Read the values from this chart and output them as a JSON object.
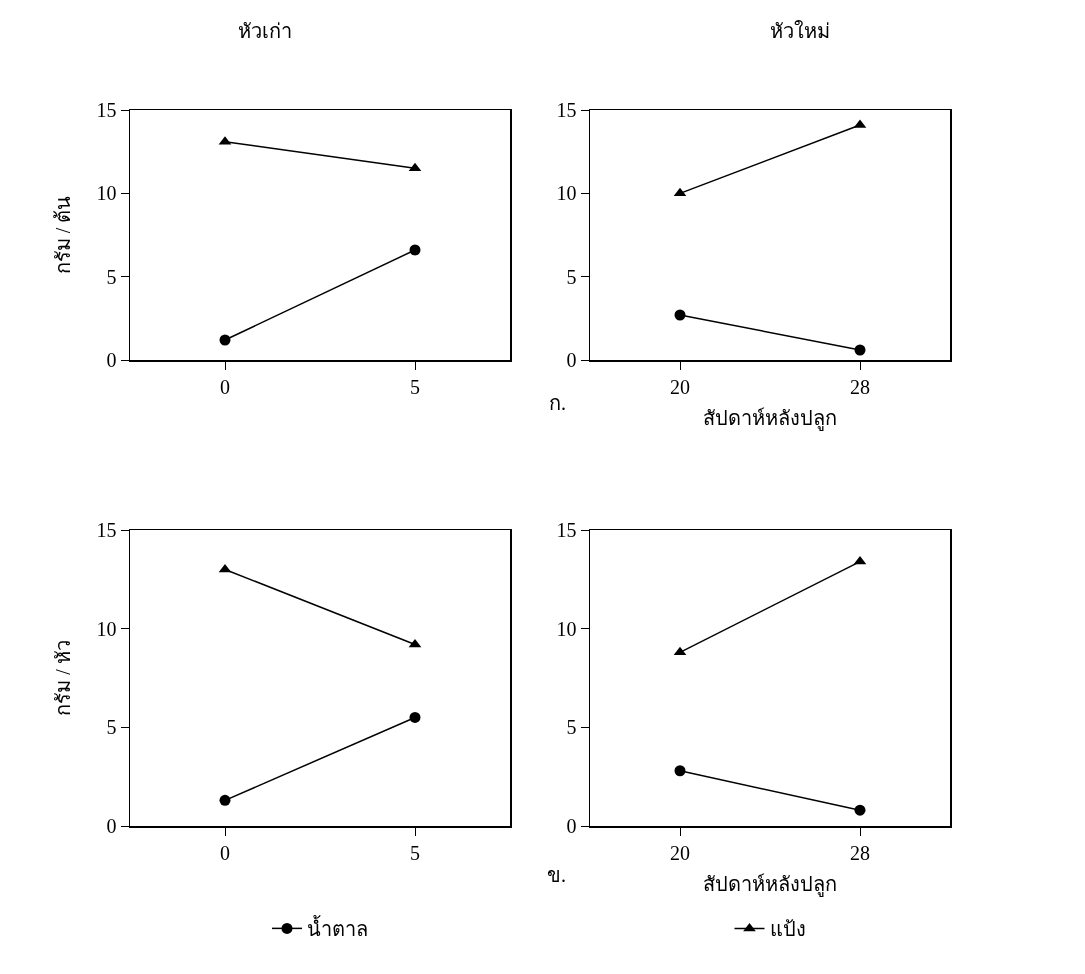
{
  "chart_data": [
    {
      "type": "line",
      "title": "หัวเก่า",
      "ylabel": "กรัม / ต้น",
      "categories": [
        "0",
        "5"
      ],
      "ylim": [
        0,
        15
      ],
      "yticks": [
        0,
        5,
        10,
        15
      ],
      "grid": false,
      "legend": false,
      "series": [
        {
          "color": "#000000",
          "marker": "circle",
          "values": [
            1.2,
            6.6
          ]
        },
        {
          "color": "#000000",
          "marker": "triangle",
          "values": [
            13.1,
            11.5
          ]
        }
      ]
    },
    {
      "type": "line",
      "title": "หัวใหม่",
      "xlabel": "สัปดาห์หลังปลูก",
      "annotations": [
        "ก."
      ],
      "categories": [
        "20",
        "28"
      ],
      "ylim": [
        0,
        15
      ],
      "yticks": [
        0,
        5,
        10,
        15
      ],
      "grid": false,
      "legend": false,
      "series": [
        {
          "color": "#000000",
          "marker": "circle",
          "values": [
            2.7,
            0.6
          ]
        },
        {
          "color": "#000000",
          "marker": "triangle",
          "values": [
            10.0,
            14.1
          ]
        }
      ]
    },
    {
      "type": "line",
      "ylabel": "กรัม / หัว",
      "categories": [
        "0",
        "5"
      ],
      "ylim": [
        0,
        15
      ],
      "yticks": [
        0,
        5,
        10,
        15
      ],
      "grid": false,
      "legend": "bottom",
      "series": [
        {
          "name": "น้ำตาล",
          "color": "#000000",
          "marker": "circle",
          "values": [
            1.3,
            5.5
          ]
        },
        {
          "color": "#000000",
          "marker": "triangle",
          "values": [
            13.0,
            9.2
          ]
        }
      ]
    },
    {
      "type": "line",
      "xlabel": "สัปดาห์หลังปลูก",
      "annotations": [
        "ข."
      ],
      "categories": [
        "20",
        "28"
      ],
      "ylim": [
        0,
        15
      ],
      "yticks": [
        0,
        5,
        10,
        15
      ],
      "grid": false,
      "legend": "bottom",
      "series": [
        {
          "color": "#000000",
          "marker": "circle",
          "values": [
            2.8,
            0.8
          ]
        },
        {
          "name": "แป้ง",
          "color": "#000000",
          "marker": "triangle",
          "values": [
            8.8,
            13.4
          ]
        }
      ]
    }
  ]
}
